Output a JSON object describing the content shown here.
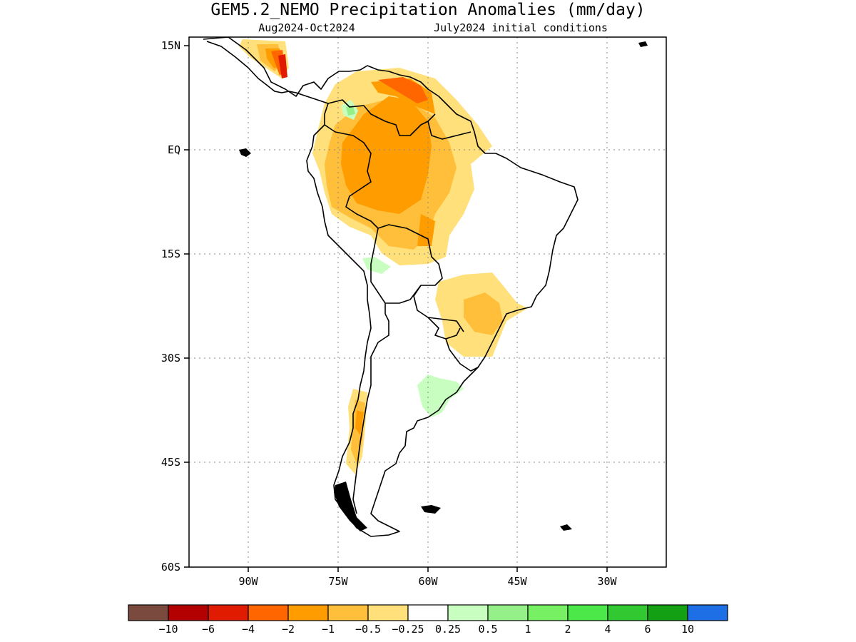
{
  "title": "GEM5.2_NEMO Precipitation Anomalies (mm/day)",
  "subtitle_left": "Aug2024-Oct2024",
  "subtitle_right": "July2024 initial conditions",
  "map": {
    "lat_labels": [
      "15N",
      "EQ",
      "15S",
      "30S",
      "45S",
      "60S"
    ],
    "lon_labels": [
      "90W",
      "75W",
      "60W",
      "45W",
      "30W"
    ],
    "grid": true
  },
  "colorbar": {
    "colors": [
      "#7a4a3e",
      "#b30000",
      "#e01b00",
      "#ff6600",
      "#ff9d00",
      "#ffbf3a",
      "#ffe07a",
      "#ffffff",
      "#c8ffc0",
      "#96f08a",
      "#78f064",
      "#4ce84a",
      "#32c832",
      "#14a014",
      "#1e6ee6"
    ],
    "labels": [
      "-10",
      "-6",
      "-4",
      "-2",
      "-1",
      "-0.5",
      "-0.25",
      "0.25",
      "0.5",
      "1",
      "2",
      "4",
      "6",
      "10"
    ]
  }
}
